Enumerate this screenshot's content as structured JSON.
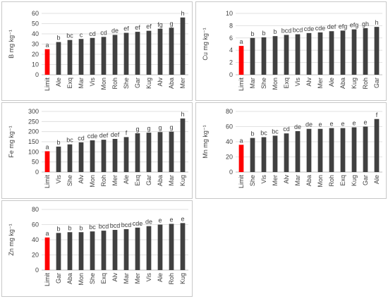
{
  "colors": {
    "limit_bar": "#ff0000",
    "bar": "#404040",
    "grid": "#d9d9d9",
    "axis": "#bfbfbf",
    "text": "#404040"
  },
  "chart_data": [
    {
      "id": "B",
      "type": "bar",
      "ylabel": "B mg kg⁻¹",
      "ylim": [
        0,
        60
      ],
      "yticks": [
        0,
        10,
        20,
        30,
        40,
        50,
        60
      ],
      "grid": true,
      "categories": [
        "Limit",
        "Ale",
        "Exq",
        "Mar",
        "Vis",
        "Mon",
        "Roh",
        "She",
        "Gar",
        "Kug",
        "Alv",
        "Aba",
        "Mer"
      ],
      "values": [
        25,
        32,
        34,
        35,
        36,
        37,
        39,
        41,
        42,
        43,
        45,
        46,
        56
      ],
      "labels": [
        "a",
        "b",
        "bc",
        "c",
        "cd",
        "cd",
        "de",
        "ef",
        "ef",
        "ef",
        "fg",
        "g",
        "h"
      ]
    },
    {
      "id": "Cu",
      "type": "bar",
      "ylabel": "Cu mg kg⁻¹",
      "ylim": [
        0,
        10
      ],
      "yticks": [
        0,
        2,
        4,
        6,
        8,
        10
      ],
      "grid": true,
      "categories": [
        "Limit",
        "Mar",
        "She",
        "Mon",
        "Exq",
        "Vis",
        "Alv",
        "Mer",
        "Ale",
        "Aba",
        "Kug",
        "Roh",
        "Gar"
      ],
      "values": [
        4.7,
        6.0,
        6.1,
        6.3,
        6.5,
        6.6,
        6.8,
        6.9,
        7.1,
        7.2,
        7.4,
        7.6,
        7.8
      ],
      "labels": [
        "a",
        "b",
        "b",
        "b",
        "bcd",
        "bcd",
        "cde",
        "cde",
        "def",
        "efg",
        "efg",
        "gh",
        "h"
      ]
    },
    {
      "id": "Fe",
      "type": "bar",
      "ylabel": "Fe mg kg⁻¹",
      "ylim": [
        0,
        300
      ],
      "yticks": [
        0,
        50,
        100,
        150,
        200,
        250,
        300
      ],
      "grid": true,
      "categories": [
        "Limit",
        "Vis",
        "She",
        "Alv",
        "Mon",
        "Roh",
        "Mer",
        "Ale",
        "Exq",
        "Gar",
        "Aba",
        "Mar",
        "Kug"
      ],
      "values": [
        103,
        126,
        137,
        147,
        157,
        160,
        164,
        173,
        192,
        195,
        198,
        200,
        265
      ],
      "labels": [
        "a",
        "b",
        "bc",
        "cd",
        "cde",
        "def",
        "def",
        "f",
        "g",
        "g",
        "g",
        "g",
        "h"
      ]
    },
    {
      "id": "Mn",
      "type": "bar",
      "ylabel": "Mn mg kg⁻¹",
      "ylim": [
        0,
        80
      ],
      "yticks": [
        0,
        20,
        40,
        60,
        80
      ],
      "grid": true,
      "categories": [
        "Limit",
        "She",
        "Vis",
        "Mer",
        "Alv",
        "Mar",
        "Aba",
        "Mon",
        "Roh",
        "Exq",
        "Kug",
        "Gar",
        "Ale"
      ],
      "values": [
        36,
        45,
        46,
        48,
        51,
        54,
        57,
        57,
        58,
        58,
        59,
        60,
        70
      ],
      "labels": [
        "a",
        "b",
        "bc",
        "bc",
        "cd",
        "de",
        "de",
        "e",
        "e",
        "e",
        "e",
        "e",
        "f"
      ]
    },
    {
      "id": "Zn",
      "type": "bar",
      "ylabel": "Zn mg kg⁻¹",
      "ylim": [
        0,
        80
      ],
      "yticks": [
        0,
        20,
        40,
        60,
        80
      ],
      "grid": true,
      "categories": [
        "Limit",
        "Gar",
        "Aba",
        "Mon",
        "She",
        "Exq",
        "Alv",
        "Mar",
        "Mer",
        "Vis",
        "Ale",
        "Roh",
        "Kug"
      ],
      "values": [
        43,
        49,
        50,
        50,
        51,
        52,
        53,
        54,
        56,
        58,
        60,
        61,
        62
      ],
      "labels": [
        "a",
        "b",
        "b",
        "b",
        "bc",
        "bcd",
        "bcd",
        "bcd",
        "cde",
        "de",
        "e",
        "e",
        "e"
      ]
    }
  ]
}
